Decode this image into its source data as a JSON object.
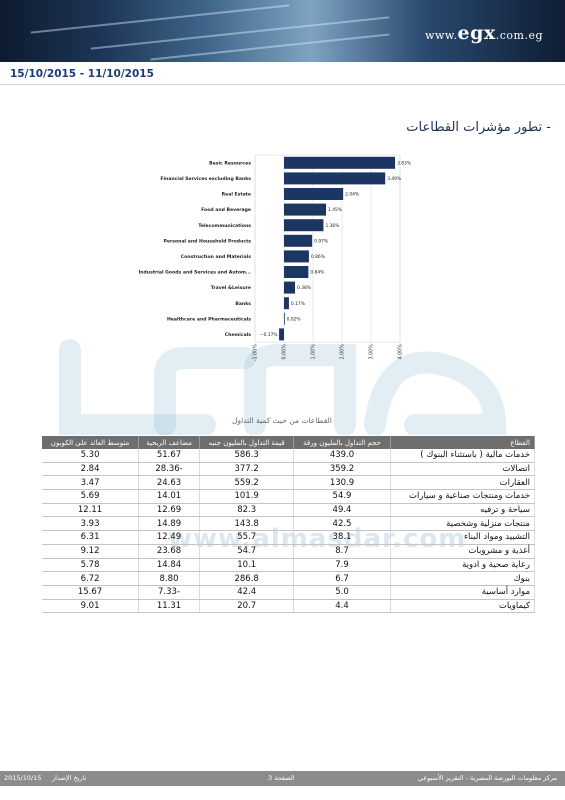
{
  "header": {
    "logo_www": "www.",
    "logo_egx": "egx",
    "logo_tld": ".com.eg",
    "date_range": "15/10/2015 - 11/10/2015"
  },
  "section_title": "- تطور مؤشرات القطاعات",
  "chart_data": {
    "type": "bar",
    "orientation": "horizontal",
    "categories": [
      "Basic Resources",
      "Financial Services excluding Banks",
      "Real Estate",
      "Food and Beverage",
      "Telecommunications",
      "Personal and Household Products",
      "Construction and Materials",
      "Industrial Goods and Services and Autom...",
      "Travel &Leisure",
      "Banks",
      "Healthcare and Pharmaceuticals",
      "Chemicals"
    ],
    "values": [
      3.83,
      3.49,
      2.04,
      1.45,
      1.36,
      0.97,
      0.86,
      0.84,
      0.38,
      0.17,
      0.02,
      -0.17
    ],
    "value_labels": [
      "3.83%",
      "3.49%",
      "2.04%",
      "1.45%",
      "1.36%",
      "0.97%",
      "0.86%",
      "0.84%",
      "0.38%",
      "0.17%",
      "0.02%",
      "−0.17%"
    ],
    "x_ticks": [
      -1,
      0,
      1,
      2,
      3,
      4
    ],
    "x_tick_labels": [
      "-1.00%",
      "0.00%",
      "1.00%",
      "2.00%",
      "3.00%",
      "4.00%"
    ],
    "xlim": [
      -1,
      4
    ],
    "grid": true,
    "bar_color": "#1c3664",
    "title": "",
    "xlabel": "",
    "ylabel": ""
  },
  "watermark": {
    "url": "www.almasdar.com"
  },
  "table": {
    "caption": "القطاعات من حيث كمية التداول",
    "headers": [
      "القطاع",
      "حجم التداول بالمليون ورقة",
      "قيمة التداول بالمليون جنيه",
      "مضاعف الربحية",
      "متوسط العائد على الكوبون"
    ],
    "rows": [
      [
        "خدمات مالية ( باستثناء البنوك )",
        "439.0",
        "586.3",
        "51.67",
        "5.30"
      ],
      [
        "اتصالات",
        "359.2",
        "377.2",
        "28.36-",
        "2.84"
      ],
      [
        "العقارات",
        "130.9",
        "559.2",
        "24.63",
        "3.47"
      ],
      [
        "خدمات ومنتجات صناعية و سيارات",
        "54.9",
        "101.9",
        "14.01",
        "5.69"
      ],
      [
        "سياحة و ترفيه",
        "49.4",
        "82.3",
        "12.69",
        "12.11"
      ],
      [
        "منتجات منزلية وشخصية",
        "42.5",
        "143.8",
        "14.89",
        "3.93"
      ],
      [
        "التشييد ومواد البناء",
        "38.1",
        "55.7",
        "12.49",
        "6.31"
      ],
      [
        "أغذية و مشروبات",
        "8.7",
        "54.7",
        "23.68",
        "9.12"
      ],
      [
        "رعاية صحية و ادوية",
        "7.9",
        "10.1",
        "14.84",
        "5.78"
      ],
      [
        "بنوك",
        "6.7",
        "286.8",
        "8.80",
        "6.72"
      ],
      [
        "موارد أساسية",
        "5.0",
        "42.4",
        "7.33-",
        "15.67"
      ],
      [
        "كيماويات",
        "4.4",
        "20.7",
        "11.31",
        "9.01"
      ]
    ]
  },
  "footer": {
    "org": "مركز معلومات البورصة المصرية - التقرير الأسبوعي",
    "page": "الصفحة 3",
    "issue_label": "تاريخ الإصدار",
    "issue_date": "2015/10/15"
  }
}
